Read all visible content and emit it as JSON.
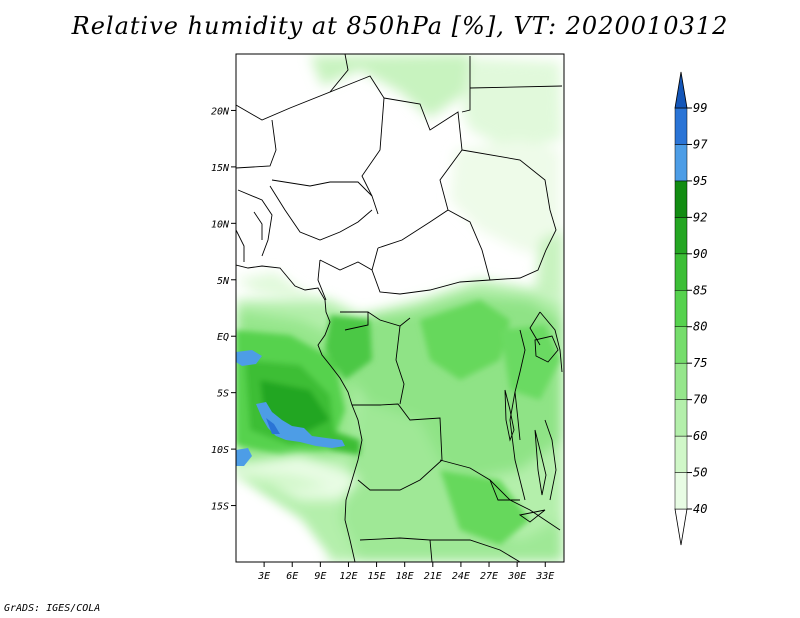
{
  "title": "Relative humidity at 850hPa [%], VT: 2020010312",
  "credit": "GrADS: IGES/COLA",
  "map": {
    "lon_range": [
      0,
      35
    ],
    "lat_range": [
      -20,
      25
    ],
    "lat_ticks": [
      {
        "label": "20N",
        "value": 20
      },
      {
        "label": "15N",
        "value": 15
      },
      {
        "label": "10N",
        "value": 10
      },
      {
        "label": "5N",
        "value": 5
      },
      {
        "label": "EQ",
        "value": 0
      },
      {
        "label": "5S",
        "value": -5
      },
      {
        "label": "10S",
        "value": -10
      },
      {
        "label": "15S",
        "value": -15
      }
    ],
    "lon_ticks": [
      {
        "label": "3E",
        "value": 3
      },
      {
        "label": "6E",
        "value": 6
      },
      {
        "label": "9E",
        "value": 9
      },
      {
        "label": "12E",
        "value": 12
      },
      {
        "label": "15E",
        "value": 15
      },
      {
        "label": "18E",
        "value": 18
      },
      {
        "label": "21E",
        "value": 21
      },
      {
        "label": "24E",
        "value": 24
      },
      {
        "label": "27E",
        "value": 27
      },
      {
        "label": "30E",
        "value": 30
      },
      {
        "label": "33E",
        "value": 33
      }
    ]
  },
  "colorbar": {
    "levels": [
      "40",
      "50",
      "60",
      "70",
      "75",
      "80",
      "85",
      "90",
      "92",
      "95",
      "97",
      "99"
    ],
    "colors": [
      "#ffffff",
      "#e8fce4",
      "#d0f7c8",
      "#b4efab",
      "#96e68c",
      "#76dd6c",
      "#56d24e",
      "#3cbe36",
      "#24a622",
      "#128c12",
      "#4d9de6",
      "#2a74d6",
      "#1456b8"
    ]
  },
  "regions": [
    {
      "name": "humid-gulf-of-guinea",
      "level_index": 5
    },
    {
      "name": "humid-congo-basin",
      "level_index": 5
    },
    {
      "name": "very-humid-atlantic",
      "level_index": 8
    },
    {
      "name": "saturated-atlantic",
      "level_index": 11
    }
  ]
}
